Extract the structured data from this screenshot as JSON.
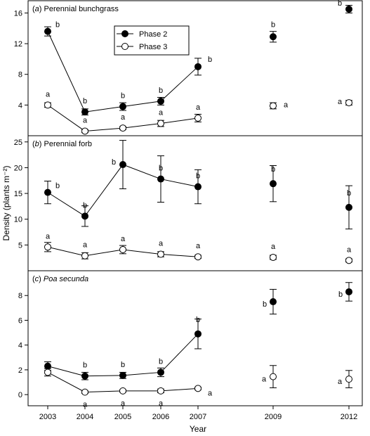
{
  "chart_data": {
    "type": "scatter",
    "xlabel": "Year",
    "ylabel": "Density (plants m⁻²)",
    "x_ticks": [
      2003,
      2004,
      2005,
      2006,
      2007,
      2009,
      2012
    ],
    "legend": {
      "placement": "top-left",
      "entries": [
        {
          "label": "Phase 2",
          "marker": "filled-circle",
          "color": "#000000"
        },
        {
          "label": "Phase 3",
          "marker": "open-circle",
          "color": "#ffffff"
        }
      ]
    },
    "panels": [
      {
        "letter": "a",
        "title": "Perennial bunchgrass",
        "title_italic": false,
        "ylim": [
          0,
          17.6
        ],
        "yticks": [
          4,
          8,
          12,
          16
        ],
        "series": [
          {
            "name": "Phase 2",
            "x": [
              2003,
              2004,
              2005,
              2006,
              2007,
              2009,
              2012
            ],
            "y": [
              13.6,
              3.1,
              3.8,
              4.5,
              9.0,
              12.9,
              16.5
            ],
            "err": [
              0.6,
              0.4,
              0.5,
              0.5,
              1.1,
              0.7,
              0.5
            ],
            "labels": [
              "b",
              "b",
              "b",
              "b",
              "b",
              "b",
              "b"
            ],
            "connected_through": 2007
          },
          {
            "name": "Phase 3",
            "x": [
              2003,
              2004,
              2005,
              2006,
              2007,
              2009,
              2012
            ],
            "y": [
              4.0,
              0.6,
              1.0,
              1.6,
              2.3,
              3.9,
              4.3
            ],
            "err": [
              0.3,
              0.2,
              0.2,
              0.4,
              0.5,
              0.4,
              0.3
            ],
            "labels": [
              "a",
              "a",
              "a",
              "a",
              "a",
              "a",
              "a"
            ],
            "connected_through": 2007
          }
        ]
      },
      {
        "letter": "b",
        "title": "Perennial forb",
        "title_italic": false,
        "ylim": [
          0,
          26.2
        ],
        "yticks": [
          5,
          10,
          15,
          20,
          25
        ],
        "series": [
          {
            "name": "Phase 2",
            "x": [
              2003,
              2004,
              2005,
              2006,
              2007,
              2009,
              2012
            ],
            "y": [
              15.2,
              10.6,
              20.6,
              17.8,
              16.3,
              16.9,
              12.3
            ],
            "err": [
              2.2,
              2.0,
              4.7,
              4.5,
              3.3,
              3.5,
              4.2
            ],
            "labels": [
              "b",
              "b",
              "b",
              "b",
              "b",
              "b",
              "b"
            ],
            "connected_through": 2007
          },
          {
            "name": "Phase 3",
            "x": [
              2003,
              2004,
              2005,
              2006,
              2007,
              2009,
              2012
            ],
            "y": [
              4.6,
              2.9,
              4.1,
              3.2,
              2.7,
              2.6,
              2.0
            ],
            "err": [
              0.9,
              0.6,
              0.8,
              0.5,
              0.3,
              0.4,
              0.3
            ],
            "labels": [
              "a",
              "a",
              "a",
              "a",
              "a",
              "a",
              "a"
            ],
            "connected_through": 2007
          }
        ]
      },
      {
        "letter": "c",
        "title": "Poa secunda",
        "title_italic": true,
        "ylim": [
          -0.9,
          10.0
        ],
        "yticks": [
          0,
          2,
          4,
          6,
          8
        ],
        "series": [
          {
            "name": "Phase 2",
            "x": [
              2003,
              2004,
              2005,
              2006,
              2007,
              2009,
              2012
            ],
            "y": [
              2.3,
              1.5,
              1.55,
              1.8,
              4.9,
              7.5,
              8.3
            ],
            "err": [
              0.35,
              0.3,
              0.25,
              0.35,
              1.2,
              1.0,
              0.75
            ],
            "labels": [
              "",
              "b",
              "b",
              "b",
              "b",
              "b",
              "b"
            ],
            "connected_through": 2007
          },
          {
            "name": "Phase 3",
            "x": [
              2003,
              2004,
              2005,
              2006,
              2007,
              2009,
              2012
            ],
            "y": [
              1.8,
              0.2,
              0.3,
              0.3,
              0.5,
              1.45,
              1.25
            ],
            "err": [
              0.3,
              0.1,
              0.1,
              0.15,
              0.1,
              0.9,
              0.7
            ],
            "labels": [
              "",
              "a",
              "a",
              "a",
              "a",
              "a",
              "a"
            ],
            "connected_through": 2007
          }
        ]
      }
    ]
  }
}
